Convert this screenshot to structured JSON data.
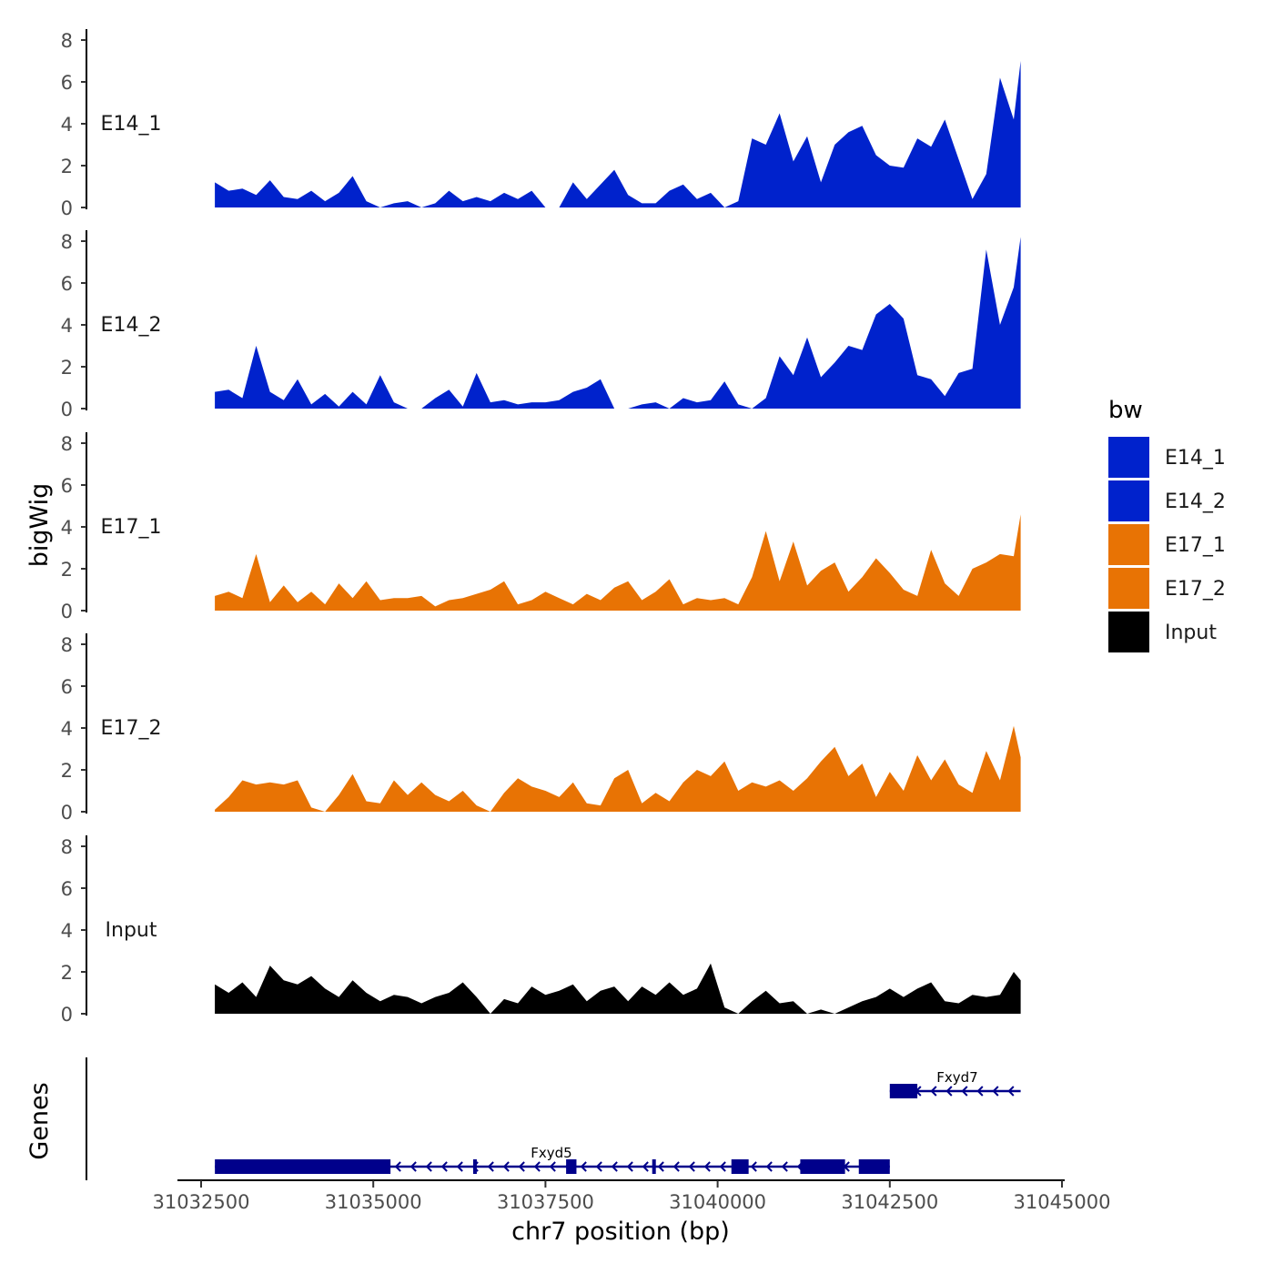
{
  "chart_data": {
    "type": "area",
    "y_axis_title": "bigWig",
    "x_axis_title": "chr7 position (bp)",
    "x_range": [
      31032000,
      31045000
    ],
    "x_ticks": [
      31032500,
      31035000,
      31037500,
      31040000,
      31042500,
      31045000
    ],
    "x_tick_labels": [
      "31032500",
      "31035000",
      "31037500",
      "31040000",
      "31042500",
      "31045000"
    ],
    "y_range": [
      0,
      8.3
    ],
    "y_ticks": [
      0,
      2,
      4,
      6,
      8
    ],
    "y_tick_labels": [
      "0",
      "2",
      "4",
      "6",
      "8"
    ],
    "legend": {
      "title": "bw",
      "items": [
        {
          "label": "E14_1",
          "color": "#0022CC"
        },
        {
          "label": "E14_2",
          "color": "#0022CC"
        },
        {
          "label": "E17_1",
          "color": "#E87304"
        },
        {
          "label": "E17_2",
          "color": "#E87304"
        },
        {
          "label": "Input",
          "color": "#000000"
        }
      ]
    },
    "x": [
      31032700,
      31032900,
      31033100,
      31033300,
      31033500,
      31033700,
      31033900,
      31034100,
      31034300,
      31034500,
      31034700,
      31034900,
      31035100,
      31035300,
      31035500,
      31035700,
      31035900,
      31036100,
      31036300,
      31036500,
      31036700,
      31036900,
      31037100,
      31037300,
      31037500,
      31037700,
      31037900,
      31038100,
      31038300,
      31038500,
      31038700,
      31038900,
      31039100,
      31039300,
      31039500,
      31039700,
      31039900,
      31040100,
      31040300,
      31040500,
      31040700,
      31040900,
      31041100,
      31041300,
      31041500,
      31041700,
      31041900,
      31042100,
      31042300,
      31042500,
      31042700,
      31042900,
      31043100,
      31043300,
      31043500,
      31043700,
      31043900,
      31044100,
      31044300,
      31044400
    ],
    "series": [
      {
        "name": "E14_1",
        "color": "#0022CC",
        "values": [
          1.2,
          0.8,
          0.9,
          0.6,
          1.3,
          0.5,
          0.4,
          0.8,
          0.3,
          0.7,
          1.5,
          0.3,
          0,
          0.2,
          0.3,
          0,
          0.2,
          0.8,
          0.3,
          0.5,
          0.3,
          0.7,
          0.4,
          0.8,
          0,
          0,
          1.2,
          0.4,
          1.1,
          1.8,
          0.6,
          0.2,
          0.2,
          0.8,
          1.1,
          0.4,
          0.7,
          0,
          0.3,
          3.3,
          3.0,
          4.5,
          2.2,
          3.4,
          1.2,
          3.0,
          3.6,
          3.9,
          2.5,
          2.0,
          1.9,
          3.3,
          2.9,
          4.2,
          2.3,
          0.4,
          1.6,
          6.2,
          4.2,
          7.0
        ]
      },
      {
        "name": "E14_2",
        "color": "#0022CC",
        "values": [
          0.8,
          0.9,
          0.5,
          3.0,
          0.8,
          0.4,
          1.4,
          0.2,
          0.7,
          0.1,
          0.8,
          0.2,
          1.6,
          0.3,
          0,
          0,
          0.5,
          0.9,
          0.1,
          1.7,
          0.3,
          0.4,
          0.2,
          0.3,
          0.3,
          0.4,
          0.8,
          1.0,
          1.4,
          0,
          0,
          0.2,
          0.3,
          0,
          0.5,
          0.3,
          0.4,
          1.3,
          0.2,
          0,
          0.5,
          2.5,
          1.6,
          3.4,
          1.5,
          2.2,
          3.0,
          2.8,
          4.5,
          5.0,
          4.3,
          1.6,
          1.4,
          0.6,
          1.7,
          1.9,
          7.6,
          4.0,
          5.8,
          8.2
        ]
      },
      {
        "name": "E17_1",
        "color": "#E87304",
        "values": [
          0.7,
          0.9,
          0.6,
          2.7,
          0.4,
          1.2,
          0.4,
          0.9,
          0.3,
          1.3,
          0.6,
          1.4,
          0.5,
          0.6,
          0.6,
          0.7,
          0.2,
          0.5,
          0.6,
          0.8,
          1.0,
          1.4,
          0.3,
          0.5,
          0.9,
          0.6,
          0.3,
          0.8,
          0.5,
          1.1,
          1.4,
          0.5,
          0.9,
          1.5,
          0.3,
          0.6,
          0.5,
          0.6,
          0.3,
          1.6,
          3.8,
          1.4,
          3.3,
          1.2,
          1.9,
          2.3,
          0.9,
          1.6,
          2.5,
          1.8,
          1.0,
          0.7,
          2.9,
          1.3,
          0.7,
          2.0,
          2.3,
          2.7,
          2.6,
          4.6
        ]
      },
      {
        "name": "E17_2",
        "color": "#E87304",
        "values": [
          0.1,
          0.7,
          1.5,
          1.3,
          1.4,
          1.3,
          1.5,
          0.2,
          0,
          0.8,
          1.8,
          0.5,
          0.4,
          1.5,
          0.8,
          1.4,
          0.8,
          0.5,
          1.0,
          0.3,
          0,
          0.9,
          1.6,
          1.2,
          1.0,
          0.7,
          1.4,
          0.4,
          0.3,
          1.6,
          2.0,
          0.4,
          0.9,
          0.5,
          1.4,
          2.0,
          1.7,
          2.4,
          1.0,
          1.4,
          1.2,
          1.5,
          1.0,
          1.6,
          2.4,
          3.1,
          1.7,
          2.3,
          0.7,
          1.9,
          1.0,
          2.7,
          1.5,
          2.5,
          1.3,
          0.9,
          2.9,
          1.5,
          4.1,
          2.6
        ]
      },
      {
        "name": "Input",
        "color": "#000000",
        "values": [
          1.4,
          1.0,
          1.5,
          0.8,
          2.3,
          1.6,
          1.4,
          1.8,
          1.2,
          0.8,
          1.6,
          1.0,
          0.6,
          0.9,
          0.8,
          0.5,
          0.8,
          1.0,
          1.5,
          0.8,
          0,
          0.7,
          0.5,
          1.3,
          0.9,
          1.1,
          1.4,
          0.6,
          1.1,
          1.3,
          0.6,
          1.3,
          0.9,
          1.5,
          0.9,
          1.2,
          2.4,
          0.3,
          0,
          0.6,
          1.1,
          0.5,
          0.6,
          0,
          0.2,
          0,
          0.3,
          0.6,
          0.8,
          1.2,
          0.8,
          1.2,
          1.5,
          0.6,
          0.5,
          0.9,
          0.8,
          0.9,
          2.0,
          1.6
        ]
      }
    ],
    "genes": {
      "title": "Genes",
      "transcripts": [
        {
          "name": "Fxyd7",
          "start": 31042500,
          "end": 31044400,
          "strand": "-",
          "exons": [
            [
              31042500,
              31042900
            ]
          ]
        },
        {
          "name": "Fxyd5",
          "start": 31032700,
          "end": 31042500,
          "strand": "-",
          "exons": [
            [
              31032700,
              31035250
            ],
            [
              31036450,
              31036500
            ],
            [
              31037800,
              31037950
            ],
            [
              31039050,
              31039100
            ],
            [
              31040200,
              31040450
            ],
            [
              31041200,
              31041850
            ],
            [
              31042050,
              31042500
            ]
          ]
        }
      ]
    }
  }
}
